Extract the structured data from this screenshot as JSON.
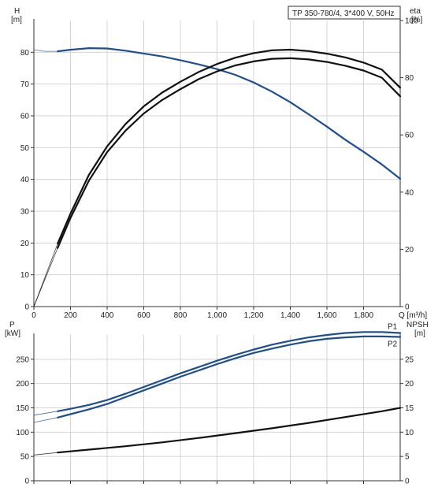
{
  "chart_data": [
    {
      "type": "line",
      "title": "TP 350-780/4, 3*400 V, 50Hz",
      "xlabel": "Q [m³/h]",
      "ylabel_left": [
        "H",
        "[m]"
      ],
      "ylabel_right": [
        "eta",
        "[%]"
      ],
      "xlim": [
        0,
        2000
      ],
      "ylim_left": [
        0,
        90
      ],
      "ylim_right": [
        0,
        100
      ],
      "x_ticks": [
        "0",
        "200",
        "400",
        "600",
        "800",
        "1,000",
        "1,200",
        "1,400",
        "1,600",
        "1,800"
      ],
      "x_tick_values": [
        0,
        200,
        400,
        600,
        800,
        1000,
        1200,
        1400,
        1600,
        1800
      ],
      "y_ticks_left": [
        0,
        10,
        20,
        30,
        40,
        50,
        60,
        70,
        80
      ],
      "y_ticks_right": [
        0,
        20,
        40,
        60,
        80,
        100
      ],
      "grid": true,
      "series": [
        {
          "color": "#1f4e8c",
          "axis": "left",
          "x": [
            130,
            200,
            300,
            400,
            500,
            600,
            700,
            800,
            900,
            1000,
            1100,
            1200,
            1300,
            1400,
            1500,
            1600,
            1700,
            1800,
            1900,
            2000
          ],
          "values": [
            80.3,
            80.8,
            81.3,
            81.2,
            80.5,
            79.6,
            78.7,
            77.5,
            76.2,
            74.7,
            72.9,
            70.5,
            67.6,
            64.3,
            60.5,
            56.6,
            52.5,
            48.7,
            44.7,
            40.2
          ],
          "extension": {
            "x": [
              0,
              60,
              130
            ],
            "values": [
              80.8,
              80.3,
              80.3
            ]
          }
        },
        {
          "color": "#111111",
          "axis": "right",
          "x": [
            130,
            200,
            300,
            400,
            500,
            600,
            700,
            800,
            900,
            1000,
            1100,
            1200,
            1300,
            1400,
            1500,
            1600,
            1700,
            1800,
            1900,
            2000
          ],
          "values": [
            20.5,
            31,
            44,
            54,
            61.5,
            67.5,
            72.2,
            76,
            79.5,
            82.2,
            84.3,
            85.7,
            86.6,
            86.8,
            86.4,
            85.5,
            84.2,
            82.5,
            80,
            73.5
          ],
          "extension": {
            "x": [
              0,
              130
            ],
            "values": [
              0,
              20.5
            ]
          }
        },
        {
          "color": "#111111",
          "axis": "right",
          "x": [
            130,
            200,
            300,
            400,
            500,
            600,
            700,
            800,
            900,
            1000,
            1100,
            1200,
            1300,
            1400,
            1500,
            1600,
            1700,
            1800,
            1900,
            2000
          ],
          "values": [
            22,
            32.5,
            46,
            56,
            63.8,
            70,
            74.8,
            78.6,
            82,
            84.8,
            87,
            88.6,
            89.6,
            89.8,
            89.3,
            88.4,
            87.1,
            85.3,
            82.8,
            76.5
          ],
          "extension": {
            "x": [
              0,
              130
            ],
            "values": [
              0,
              22
            ]
          }
        }
      ]
    },
    {
      "type": "line",
      "ylabel_left": [
        "P",
        "[kW]"
      ],
      "ylabel_right": [
        "NPSH",
        "[m]"
      ],
      "xlim": [
        0,
        2000
      ],
      "ylim_left": [
        0,
        300
      ],
      "ylim_right": [
        0,
        30
      ],
      "y_ticks_left": [
        0,
        50,
        100,
        150,
        200,
        250
      ],
      "y_ticks_right": [
        0,
        5,
        10,
        15,
        20,
        25
      ],
      "grid": true,
      "series": [
        {
          "name": "P1",
          "color": "#1f4e8c",
          "axis": "left",
          "x": [
            130,
            200,
            300,
            400,
            500,
            600,
            700,
            800,
            900,
            1000,
            1100,
            1200,
            1300,
            1400,
            1500,
            1600,
            1700,
            1800,
            1900,
            2000
          ],
          "values": [
            143,
            148,
            156,
            166,
            179,
            193,
            207,
            221,
            234,
            247,
            259,
            270,
            280,
            288,
            295,
            300,
            304,
            306,
            306,
            304
          ],
          "extension": {
            "x": [
              0,
              130
            ],
            "values": [
              135,
              143
            ]
          }
        },
        {
          "name": "P2",
          "color": "#1f4e8c",
          "axis": "left",
          "x": [
            130,
            200,
            300,
            400,
            500,
            600,
            700,
            800,
            900,
            1000,
            1100,
            1200,
            1300,
            1400,
            1500,
            1600,
            1700,
            1800,
            1900,
            2000
          ],
          "values": [
            130,
            137,
            147,
            158,
            172,
            186,
            200,
            214,
            227,
            240,
            252,
            263,
            272,
            280,
            287,
            292,
            295,
            297,
            297,
            296
          ],
          "extension": {
            "x": [
              0,
              130
            ],
            "values": [
              120,
              130
            ]
          }
        },
        {
          "color": "#111111",
          "axis": "right",
          "x": [
            130,
            300,
            500,
            700,
            900,
            1100,
            1300,
            1500,
            1700,
            1900,
            2000
          ],
          "values": [
            5.8,
            6.4,
            7.1,
            7.9,
            8.8,
            9.8,
            10.8,
            11.9,
            13.1,
            14.3,
            15
          ],
          "extension": {
            "x": [
              0,
              130
            ],
            "values": [
              5.3,
              5.8
            ]
          }
        }
      ]
    }
  ]
}
